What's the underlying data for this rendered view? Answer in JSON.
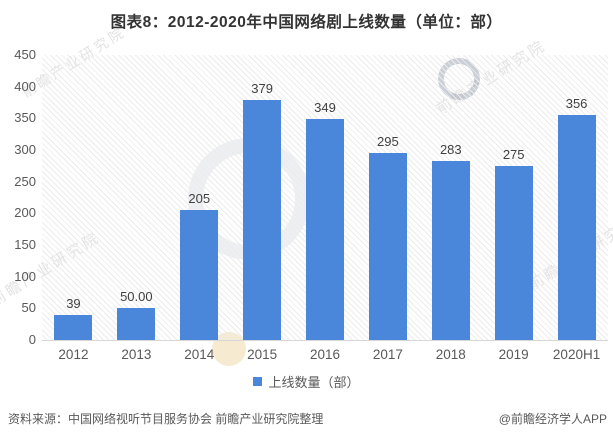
{
  "title": "图表8：2012-2020年中国网络剧上线数量（单位：部）",
  "chart_data": {
    "type": "bar",
    "title": "图表8：2012-2020年中国网络剧上线数量（单位：部）",
    "categories": [
      "2012",
      "2013",
      "2014",
      "2015",
      "2016",
      "2017",
      "2018",
      "2019",
      "2020H1"
    ],
    "values": [
      39,
      50,
      205,
      379,
      349,
      295,
      283,
      275,
      356
    ],
    "value_labels": [
      "39",
      "50.00",
      "205",
      "379",
      "349",
      "295",
      "283",
      "275",
      "356"
    ],
    "xlabel": "",
    "ylabel": "",
    "ylim": [
      0,
      450
    ],
    "yticks": [
      0,
      50,
      100,
      150,
      200,
      250,
      300,
      350,
      400,
      450
    ],
    "grid": false,
    "legend_position": "bottom",
    "legend": "上线数量（部）",
    "bar_color": "#4a86d9"
  },
  "legend": {
    "label": "上线数量（部）",
    "marker_color": "#4a86d9"
  },
  "footer": {
    "source": "资料来源：中国网络视听节目服务协会 前瞻产业研究院整理",
    "brand": "@前瞻经济学人APP"
  },
  "watermark": {
    "text": "前瞻产业研究院"
  },
  "colors": {
    "bar": "#4a86d9",
    "axis_text": "#595959",
    "value_text": "#404040",
    "title_text": "#333333"
  }
}
